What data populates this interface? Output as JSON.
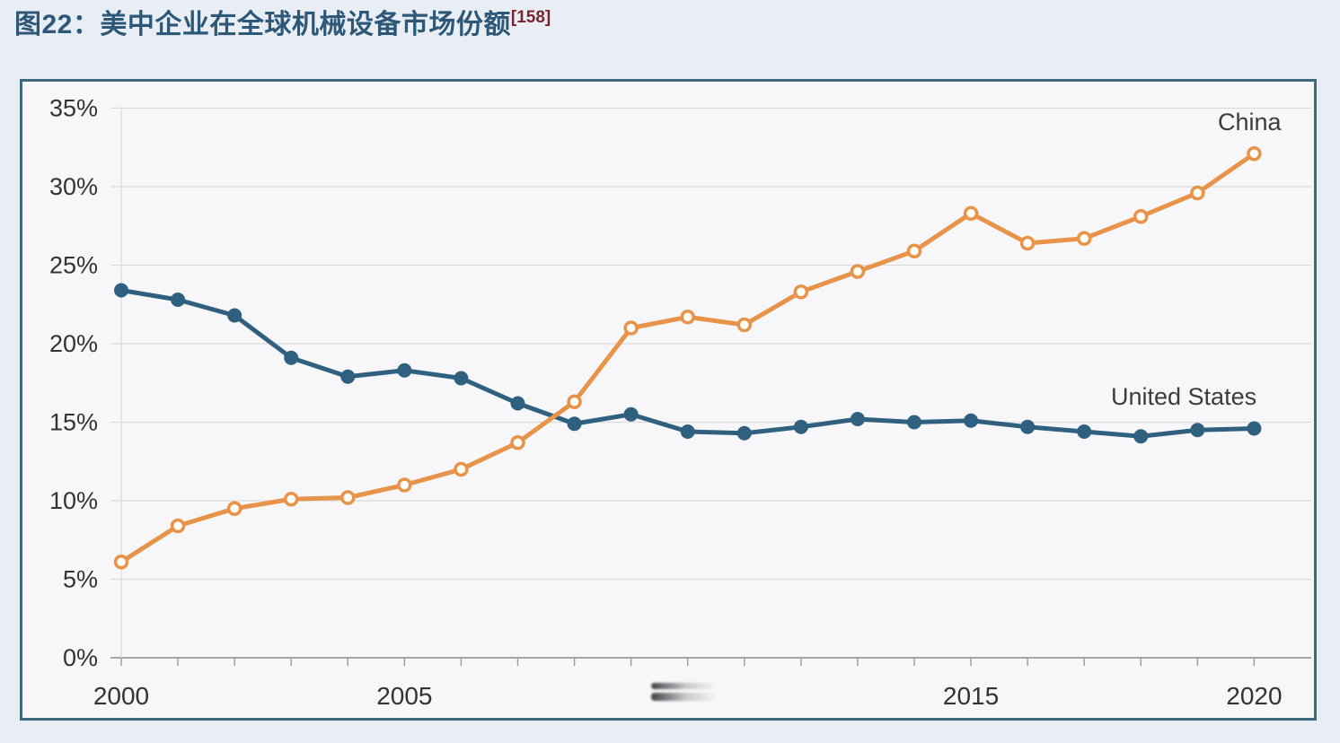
{
  "header": {
    "title": "图22：美中企业在全球机械设备市场份额",
    "citation": "[158]"
  },
  "chart_data": {
    "type": "line",
    "title": "美中企业在全球机械设备市场份额 (US vs China global machinery equipment market share)",
    "x": [
      2000,
      2001,
      2002,
      2003,
      2004,
      2005,
      2006,
      2007,
      2008,
      2009,
      2010,
      2011,
      2012,
      2013,
      2014,
      2015,
      2016,
      2017,
      2018,
      2019,
      2020
    ],
    "series": [
      {
        "name": "United States",
        "color": "#30607f",
        "marker": "filled-circle",
        "values": [
          23.4,
          22.8,
          21.8,
          19.1,
          17.9,
          18.3,
          17.8,
          16.2,
          14.9,
          15.5,
          14.4,
          14.3,
          14.7,
          15.2,
          15.0,
          15.1,
          14.7,
          14.4,
          14.1,
          14.5,
          14.6
        ]
      },
      {
        "name": "China",
        "color": "#e8934a",
        "marker": "open-circle",
        "values": [
          6.1,
          8.4,
          9.5,
          10.1,
          10.2,
          11.0,
          12.0,
          13.7,
          16.3,
          21.0,
          21.7,
          21.2,
          23.3,
          24.6,
          25.9,
          28.3,
          26.4,
          26.7,
          28.1,
          29.6,
          32.1
        ]
      }
    ],
    "ylim": [
      0,
      35
    ],
    "ytick_step": 5,
    "ytick_suffix": "%",
    "ytick_labels": [
      "35%",
      "30%",
      "25%",
      "20%",
      "15%",
      "10%",
      "5%",
      "0%"
    ],
    "xtick_labeled_years": [
      2000,
      2005,
      2015,
      2020
    ],
    "xtick_labels": [
      "2000",
      "2005",
      "2015",
      "2020"
    ],
    "grid": "horizontal",
    "legend": "inline-end-of-line-labels",
    "note": "2010 x-axis label obscured by smudge/redaction streaks"
  },
  "colors": {
    "page_bg": "#e9eef5",
    "chart_bg": "#f7f7f9",
    "frame_border": "#3e6b7c",
    "gridline": "#dadada",
    "axis_line": "#8c8c8c",
    "tick": "#999999",
    "tick_label": "#333333",
    "title_text": "#2e5877",
    "citation_text": "#7c2430",
    "series_label_text": "#3c3c3c"
  }
}
